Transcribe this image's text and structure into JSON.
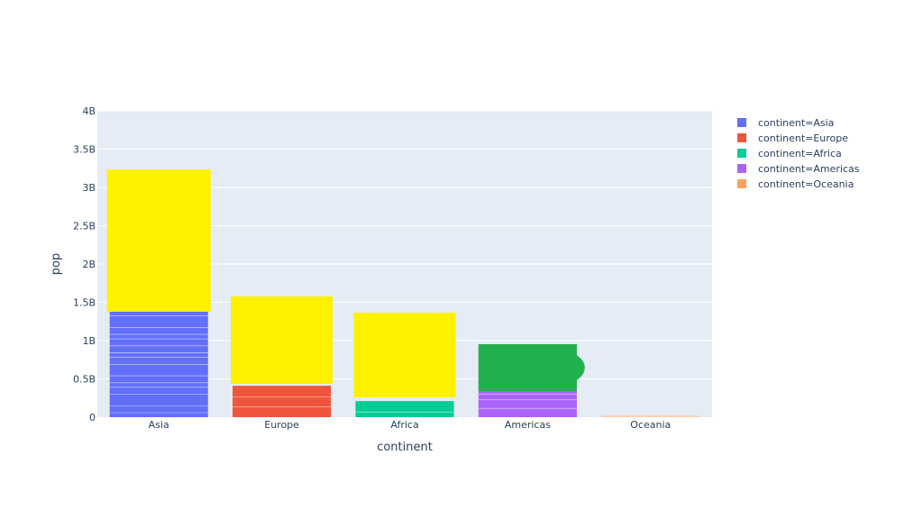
{
  "chart_data": {
    "type": "bar",
    "barmode": "stack",
    "categories": [
      "Asia",
      "Europe",
      "Africa",
      "Americas",
      "Oceania"
    ],
    "xlabel": "continent",
    "ylabel": "pop",
    "ylim": [
      0,
      4000000000
    ],
    "yticks": [
      {
        "value": 0,
        "label": "0"
      },
      {
        "value": 500000000,
        "label": "0.5B"
      },
      {
        "value": 1000000000,
        "label": "1B"
      },
      {
        "value": 1500000000,
        "label": "1.5B"
      },
      {
        "value": 2000000000,
        "label": "2B"
      },
      {
        "value": 2500000000,
        "label": "2.5B"
      },
      {
        "value": 3000000000,
        "label": "3B"
      },
      {
        "value": 3500000000,
        "label": "3.5B"
      },
      {
        "value": 4000000000,
        "label": "4B"
      }
    ],
    "grid": true,
    "legend_position": "right",
    "series": [
      {
        "name": "continent=Asia",
        "color": "#636efa",
        "category": "Asia",
        "value": 3150000000
      },
      {
        "name": "continent=Europe",
        "color": "#ef553b",
        "category": "Europe",
        "value": 410000000
      },
      {
        "name": "continent=Africa",
        "color": "#00cc96",
        "category": "Africa",
        "value": 210000000
      },
      {
        "name": "continent=Americas",
        "color": "#ab63fa",
        "category": "Americas",
        "value": 930000000
      },
      {
        "name": "continent=Oceania",
        "color": "#ffa15a",
        "category": "Oceania",
        "value": 15000000
      }
    ]
  },
  "redactions": {
    "yellow_color": "#fff200",
    "green_color": "#22b14c"
  }
}
